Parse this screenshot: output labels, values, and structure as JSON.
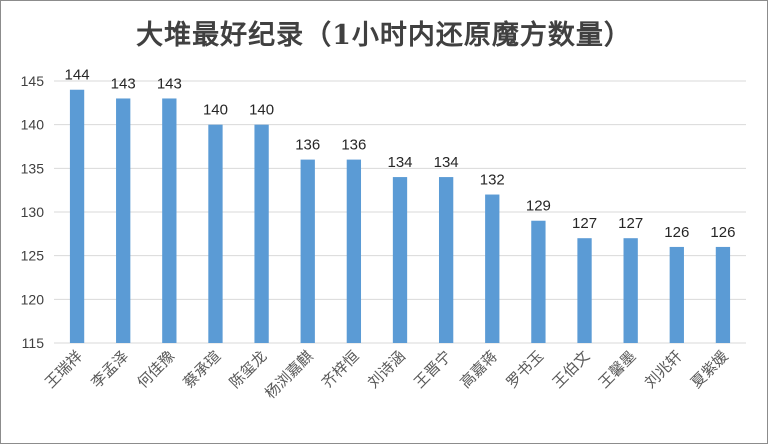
{
  "chart_data": {
    "type": "bar",
    "title": "大堆最好纪录（1小时内还原魔方数量）",
    "xlabel": "",
    "ylabel": "",
    "categories": [
      "王瑞祥",
      "李孟泽",
      "何佳豫",
      "蔡承瑄",
      "陈玺龙",
      "杨浏嘉麒",
      "齐梓恒",
      "刘诗涵",
      "王晋宁",
      "高嘉蒋",
      "罗书玉",
      "王伯文",
      "王馨墨",
      "刘兆轩",
      "夏紫媛"
    ],
    "values": [
      144,
      143,
      143,
      140,
      140,
      136,
      136,
      134,
      134,
      132,
      129,
      127,
      127,
      126,
      126
    ],
    "ylim": [
      115,
      145
    ],
    "yticks": [
      115,
      120,
      125,
      130,
      135,
      140,
      145
    ],
    "grid": true,
    "legend": "none",
    "bar_color": "#5b9bd5",
    "grid_color": "#d9d9d9"
  }
}
